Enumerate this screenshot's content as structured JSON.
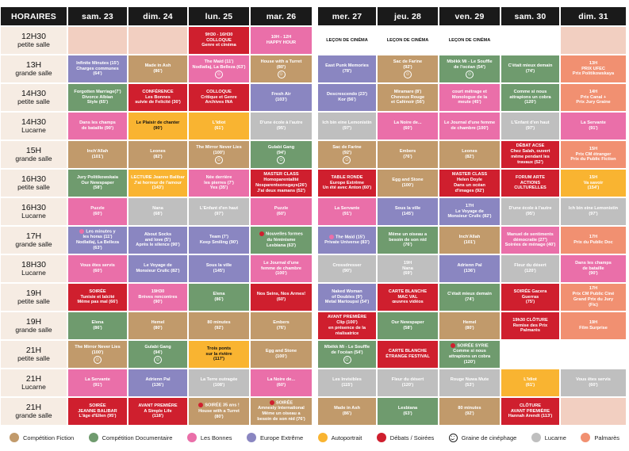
{
  "header": {
    "label": "HORAIRES",
    "days": [
      "sam. 23",
      "dim. 24",
      "lun. 25",
      "mar. 26",
      "mer. 27",
      "jeu. 28",
      "ven. 29",
      "sam. 30",
      "dim. 31"
    ]
  },
  "colors": {
    "fiction": "#c19a6b",
    "documentaire": "#6f9b6e",
    "bonnes": "#ea6fa9",
    "europe": "#8a86c1",
    "autoportrait": "#f9b431",
    "debats": "#cf1f2e",
    "lucarne": "#bfbfbf",
    "palmares": "#f19071",
    "empty": "#f2cfc1"
  },
  "rows": [
    {
      "t1": "12H30",
      "t2": "petite salle",
      "cells": [
        {
          "c": "empty",
          "text": ""
        },
        {
          "c": "empty",
          "text": ""
        },
        {
          "c": "debats",
          "text": "9H30 - 16H30\nCOLLOQUE\nGenre et cinéma"
        },
        {
          "c": "bonnes",
          "text": "10H - 12H\nHAPPY HOUR"
        },
        {
          "c": "white",
          "text": "LEÇON DE CINÉMA"
        },
        {
          "c": "white",
          "text": "LEÇON DE CINÉMA"
        },
        {
          "c": "white",
          "text": "LEÇON DE CINÉMA"
        },
        {
          "c": "white",
          "text": ""
        },
        {
          "c": "empty",
          "text": ""
        }
      ]
    },
    {
      "t1": "13H",
      "t2": "grande salle",
      "cells": [
        {
          "c": "europe",
          "text": "Infinite Minutes (15')\nCharges communes\n(64')"
        },
        {
          "c": "fiction",
          "text": "Made in Ash\n(86')"
        },
        {
          "c": "bonnes",
          "text": "The Maid (11')\nNodlatlaj, La Belleza (63')",
          "smile": true
        },
        {
          "c": "fiction",
          "text": "House with a Turret\n(80')",
          "smile": true
        },
        {
          "c": "europe",
          "text": "East Punk Memories\n(78')"
        },
        {
          "c": "fiction",
          "text": "Sac de Farine\n(92')",
          "smile": true
        },
        {
          "c": "documentaire",
          "text": "Mbëkk Mi - Le Souffle\nde l'océan (54')",
          "smile": true
        },
        {
          "c": "documentaire",
          "text": "C'était mieux demain\n(74')"
        },
        {
          "c": "palmares",
          "text": "13H\nPRIX UFEC\nPrix Politikowskaya"
        }
      ]
    },
    {
      "t1": "14H30",
      "t2": "petite salle",
      "cells": [
        {
          "c": "documentaire",
          "text": "Forgotten Marriage(7')\nDivorce Albian\nStyle (65')"
        },
        {
          "c": "debats",
          "text": "CONFÉRENCE\nLes Bonnes\nsuivie de Felicité (30')"
        },
        {
          "c": "debats",
          "text": "COLLOQUE\nCritique et Genre\nArchives INA"
        },
        {
          "c": "europe",
          "text": "Fresh Air\n(103')"
        },
        {
          "c": "europe",
          "text": "Descrescendo (23')\nKor (56')"
        },
        {
          "c": "fiction",
          "text": "Miramare (8')\nCheveux Rouge\net Cafénoir (56')"
        },
        {
          "c": "bonnes",
          "text": "court métrage et\nMonologue de la\nmeute (45')"
        },
        {
          "c": "documentaire",
          "text": "Comme si nous\nattrapions un cobra\n(120')"
        },
        {
          "c": "palmares",
          "text": "14H\nPrix Canal +\nPrix Jury Graine"
        }
      ]
    },
    {
      "t1": "14H30",
      "t2": "Lucarne",
      "cells": [
        {
          "c": "bonnes",
          "text": "Dans les champs\nde bataille (90')"
        },
        {
          "c": "autoportrait",
          "text": "Le Plaisir de chanter\n(90')",
          "dark": true
        },
        {
          "c": "autoportrait",
          "text": "L'Idiot\n(61')"
        },
        {
          "c": "lucarne",
          "text": "D'une école à l'autre\n(95')"
        },
        {
          "c": "lucarne",
          "text": "Ich bin eine Lemonistin\n(97')"
        },
        {
          "c": "bonnes",
          "text": "La Noire de...\n(60')"
        },
        {
          "c": "bonnes",
          "text": "Le Journal d'une femme\nde chambre (100')"
        },
        {
          "c": "lucarne",
          "text": "L'Enfant d'en haut\n(97')"
        },
        {
          "c": "bonnes",
          "text": "La Servante\n(91')"
        }
      ]
    },
    {
      "t1": "15H",
      "t2": "grande salle",
      "cells": [
        {
          "c": "fiction",
          "text": "Inch'Allah\n(101')"
        },
        {
          "c": "fiction",
          "text": "Leones\n(82')"
        },
        {
          "c": "fiction",
          "text": "The Mirror Never Lies\n(100')",
          "smile": true
        },
        {
          "c": "documentaire",
          "text": "Gulabi Gang\n(94')",
          "smile": true
        },
        {
          "c": "fiction",
          "text": "Sac de Farine\n(92')",
          "smile": true
        },
        {
          "c": "fiction",
          "text": "Embers\n(76')"
        },
        {
          "c": "fiction",
          "text": "Leones\n(82')"
        },
        {
          "c": "debats",
          "text": "DÉBAT ACSE\nChez Salah, ouvert\nmême pendant les\ntravaux (52')"
        },
        {
          "c": "palmares",
          "text": "15H\nPrix CM étranger\nPrix du Public Fiction"
        }
      ]
    },
    {
      "t1": "16H30",
      "t2": "petite salle",
      "cells": [
        {
          "c": "documentaire",
          "text": "Jury Politikowskaia\nOur Newspaper\n(58')"
        },
        {
          "c": "autoportrait",
          "text": "LECTURE Jeanne Balibar\nJ'ai horreur de l'amour\n(143')"
        },
        {
          "c": "bonnes",
          "text": "Née derrière\nles pierres (7')\nYes (35')"
        },
        {
          "c": "debats",
          "text": "MASTER CLASS\nHomoparentalité\nNosparentsonsgays(26')\nJ'ai deux mamans (52')"
        },
        {
          "c": "debats",
          "text": "TABLE RONDE\nEurope Extrême\nUn été avec Anton (60')"
        },
        {
          "c": "fiction",
          "text": "Egg and Stone\n(100')"
        },
        {
          "c": "debats",
          "text": "MASTER CLASS\nHelen Doyle\nDans un océan\nd'images (92')"
        },
        {
          "c": "debats",
          "text": "FORUM ARTE\nACTIONS\nCULTURELLES"
        },
        {
          "c": "autoportrait",
          "text": "15H\nVa savoir\n(154')"
        }
      ]
    },
    {
      "t1": "16H30",
      "t2": "Lucarne",
      "cells": [
        {
          "c": "bonnes",
          "text": "Puzzle\n(60')"
        },
        {
          "c": "lucarne",
          "text": "Nana\n(68')"
        },
        {
          "c": "lucarne",
          "text": "L'Enfant d'en haut\n(97')"
        },
        {
          "c": "bonnes",
          "text": "Puzzle\n(60')"
        },
        {
          "c": "bonnes",
          "text": "La Servante\n(91')"
        },
        {
          "c": "europe",
          "text": "Sous la ville\n(145')"
        },
        {
          "c": "europe",
          "text": "17H\nLe Voyage de\nMonsieur Crulic (82')"
        },
        {
          "c": "lucarne",
          "text": "D'une école à l'autre\n(95')"
        },
        {
          "c": "lucarne",
          "text": "Ich bin eine Lemonistin\n(97')"
        }
      ]
    },
    {
      "t1": "17H",
      "t2": "grande salle",
      "cells": [
        {
          "c": "europe",
          "text": "Les minutes y\nles horas (11')\nNodlatlaj, La Belleza\n(63')",
          "mark": "bonnes"
        },
        {
          "c": "europe",
          "text": "About Socks\nand love (5')\nAprès le silence (90')"
        },
        {
          "c": "europe",
          "text": "Team (7')\nKeep Smiling (90')"
        },
        {
          "c": "documentaire",
          "text": "Nouvelles formes\ndu féminisme\nLesbiana (63')",
          "mark": "debats"
        },
        {
          "c": "europe",
          "text": "The Maid (15')\nPrivate Universe (83')",
          "mark": "bonnes"
        },
        {
          "c": "documentaire",
          "text": "Même un oiseau a\nbesoin de son nid\n(76')"
        },
        {
          "c": "fiction",
          "text": "Inch'Allah\n(101')"
        },
        {
          "c": "bonnes",
          "text": "Manuel de sentiments\ndémocratie (27')\nSoirées de ménage (40')"
        },
        {
          "c": "palmares",
          "text": "17H\nPrix du Public Doc"
        }
      ]
    },
    {
      "t1": "18H30",
      "t2": "Lucarne",
      "cells": [
        {
          "c": "bonnes",
          "text": "Vous êtes servis\n(60')"
        },
        {
          "c": "europe",
          "text": "Le Voyage de\nMonsieur Crulic (82')"
        },
        {
          "c": "europe",
          "text": "Sous la ville\n(145')"
        },
        {
          "c": "bonnes",
          "text": "Le Journal d'une\nfemme de chambre\n(100')"
        },
        {
          "c": "lucarne",
          "text": "Crossdresser\n(90')"
        },
        {
          "c": "lucarne",
          "text": "19H\nNana\n(69')"
        },
        {
          "c": "europe",
          "text": "Adrienn Pal\n(136')"
        },
        {
          "c": "lucarne",
          "text": "Fleur du désert\n(120')"
        },
        {
          "c": "bonnes",
          "text": "Dans les champs\nde bataille\n(90')"
        }
      ]
    },
    {
      "t1": "19H",
      "t2": "petite salle",
      "cells": [
        {
          "c": "debats",
          "text": "SOIRÉE\nTunisie et laïcité\nMême pas mal (66')"
        },
        {
          "c": "bonnes",
          "text": "19H30\nBrèves rencontres\n(90')"
        },
        {
          "c": "documentaire",
          "text": "Elena\n(86')"
        },
        {
          "c": "debats",
          "text": "Nos Seins, Nos Armes!\n(60')"
        },
        {
          "c": "europe",
          "text": "Naked Woman\nof Doubles (9')\nMetal Martoupsi (54')"
        },
        {
          "c": "debats",
          "text": "CARTE BLANCHE\nMAC VAL\nœuvres vidéos"
        },
        {
          "c": "documentaire",
          "text": "C'était mieux demain\n(74')"
        },
        {
          "c": "debats",
          "text": "SOIRÉE Gacera\nGuerras\n(75')"
        },
        {
          "c": "palmares",
          "text": "17H\nPrix CM Public Ciné\nGrand Prix du Jury\n(Fic)"
        }
      ]
    },
    {
      "t1": "19H",
      "t2": "grande salle",
      "cells": [
        {
          "c": "documentaire",
          "text": "Elena\n(86')"
        },
        {
          "c": "fiction",
          "text": "Hemel\n(80')"
        },
        {
          "c": "fiction",
          "text": "80 minutes\n(92')"
        },
        {
          "c": "fiction",
          "text": "Embers\n(76')"
        },
        {
          "c": "debats",
          "text": "AVANT PREMIÈRE\nClip (100')\nen présence de la réalisatrice"
        },
        {
          "c": "documentaire",
          "text": "Our Newspaper\n(58')"
        },
        {
          "c": "fiction",
          "text": "Hemel\n(80')"
        },
        {
          "c": "debats",
          "text": "19h30 CLÔTURE\nRemise des Prix\nPalmarès"
        },
        {
          "c": "palmares",
          "text": "19H\nFilm Surprise"
        }
      ]
    },
    {
      "t1": "21H",
      "t2": "petite salle",
      "cells": [
        {
          "c": "fiction",
          "text": "The Mirror Never Lies\n(100')",
          "smile": true
        },
        {
          "c": "documentaire",
          "text": "Gulabi Gang\n(94')",
          "smile": true
        },
        {
          "c": "autoportrait",
          "text": "Trois ponts\nsur la rivière\n(117')",
          "dark": true
        },
        {
          "c": "fiction",
          "text": "Egg and Stone\n(100')"
        },
        {
          "c": "documentaire",
          "text": "Mbëkk Mi - Le Souffle\nde l'océan (54')",
          "smile": true
        },
        {
          "c": "debats",
          "text": "CARTE BLANCHE\nÉTRANGE FESTIVAL"
        },
        {
          "c": "documentaire",
          "text": "SOIRÉE SYRIE\nComme si nous\nattrapions un cobra\n(120')",
          "mark": "debats"
        },
        {
          "c": "white",
          "text": ""
        },
        {
          "c": "white",
          "text": ""
        }
      ]
    },
    {
      "t1": "21H",
      "t2": "Lucarne",
      "cells": [
        {
          "c": "bonnes",
          "text": "La Servante\n(91')"
        },
        {
          "c": "europe",
          "text": "Adrienn Pal\n(136')"
        },
        {
          "c": "lucarne",
          "text": "La Terre outragée\n(108')"
        },
        {
          "c": "bonnes",
          "text": "La Noire de...\n(60')"
        },
        {
          "c": "lucarne",
          "text": "Les Invisibles\n(115')"
        },
        {
          "c": "lucarne",
          "text": "Fleur du désert\n(120')"
        },
        {
          "c": "lucarne",
          "text": "Rouge Nuwa Mute\n(53')"
        },
        {
          "c": "autoportrait",
          "text": "L'Idiot\n(61')"
        },
        {
          "c": "lucarne",
          "text": "Vous êtes servis\n(60')"
        }
      ]
    },
    {
      "t1": "21H",
      "t2": "grande salle",
      "cells": [
        {
          "c": "debats",
          "text": "SOIRÉE\nJEANNE BALIBAR\nL'âge d'Ellen (95')"
        },
        {
          "c": "debats",
          "text": "AVANT PREMIÈRE\nA Simple Life\n(118')"
        },
        {
          "c": "fiction",
          "text": "SOIRÉE 35 ans !\nHouse with a Turret\n(80')",
          "mark": "debats"
        },
        {
          "c": "fiction",
          "text": "SOIRÉE\nAmnesty International\nMême un oiseau a\nbesoin de son nid (76')",
          "mark": "debats"
        },
        {
          "c": "fiction",
          "text": "Made in Ash\n(86')"
        },
        {
          "c": "documentaire",
          "text": "Lesbiana\n(63')"
        },
        {
          "c": "fiction",
          "text": "80 minutes\n(92')"
        },
        {
          "c": "debats",
          "text": "CLÔTURE\nAVANT PREMIÈRE\nHannah Arendt (113')"
        },
        {
          "c": "empty",
          "text": ""
        }
      ]
    }
  ],
  "legend": [
    {
      "key": "fiction",
      "label": "Compétition Fiction"
    },
    {
      "key": "documentaire",
      "label": "Compétition Documentaire"
    },
    {
      "key": "bonnes",
      "label": "Les Bonnes"
    },
    {
      "key": "europe",
      "label": "Europe Extrême"
    },
    {
      "key": "autoportrait",
      "label": "Autoportrait"
    },
    {
      "key": "debats",
      "label": "Débats / Soirées"
    },
    {
      "key": "smile",
      "label": "Graine de cinéphage"
    },
    {
      "key": "lucarne",
      "label": "Lucarne"
    },
    {
      "key": "palmares",
      "label": "Palmarès"
    }
  ]
}
